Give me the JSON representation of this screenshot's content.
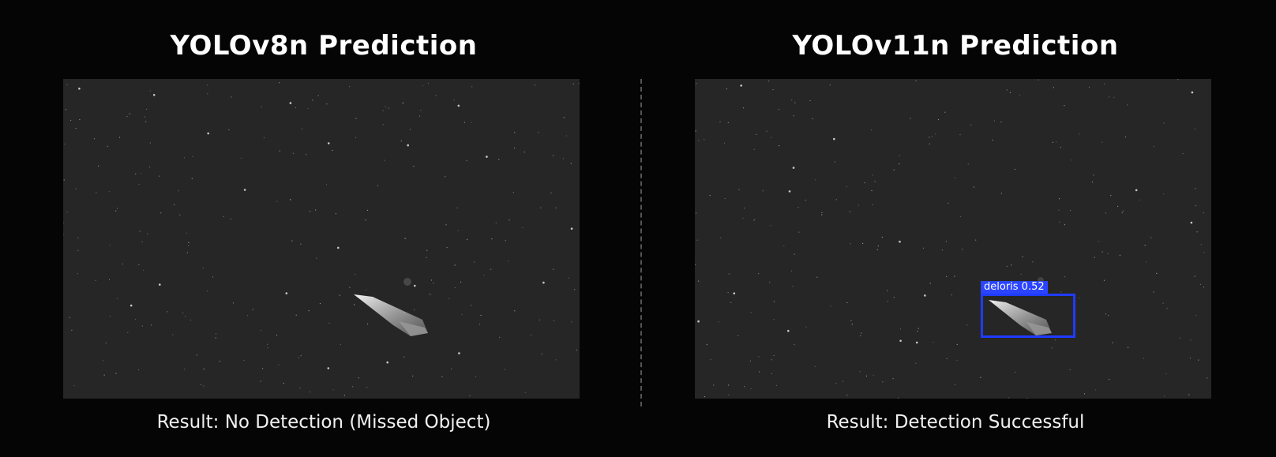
{
  "panels": [
    {
      "title": "YOLOv8n Prediction",
      "result": "Result: No Detection (Missed Object)"
    },
    {
      "title": "YOLOv11n Prediction",
      "result": "Result: Detection Successful",
      "detection": {
        "class": "deloris",
        "confidence": "0.52",
        "label": "deloris 0.52",
        "color": "#1f3bff"
      }
    }
  ],
  "colors": {
    "background": "#050505",
    "image_background": "#262626",
    "box": "#1f3bff"
  }
}
